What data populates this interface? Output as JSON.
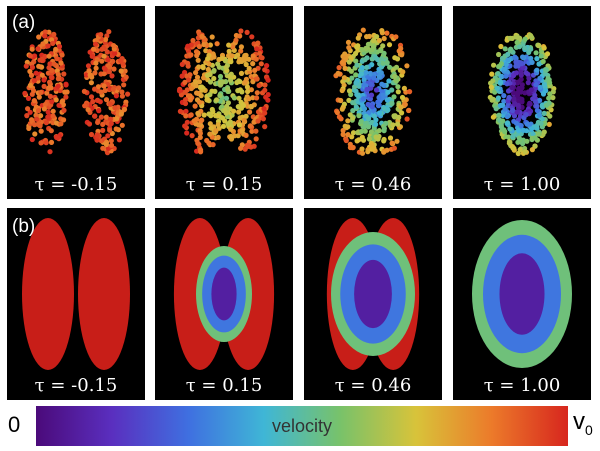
{
  "rows": [
    {
      "label": "(a)",
      "kind": "particles",
      "panels": [
        {
          "tau": "τ = -0.15",
          "stage": 0.0
        },
        {
          "tau": "τ = 0.15",
          "stage": 0.35
        },
        {
          "tau": "τ = 0.46",
          "stage": 0.7
        },
        {
          "tau": "τ = 1.00",
          "stage": 1.0
        }
      ]
    },
    {
      "label": "(b)",
      "kind": "continuum",
      "panels": [
        {
          "tau": "τ = -0.15",
          "stage": 0.0
        },
        {
          "tau": "τ = 0.15",
          "stage": 0.35
        },
        {
          "tau": "τ = 0.46",
          "stage": 0.7
        },
        {
          "tau": "τ = 1.00",
          "stage": 1.0
        }
      ]
    }
  ],
  "colorbar": {
    "min_label": "0",
    "label": "velocity",
    "max_label": "v",
    "max_subscript": "0",
    "stops": [
      "#4b0a7a",
      "#5a2fbf",
      "#3f6fe0",
      "#3fb6d6",
      "#78c26a",
      "#d8c33a",
      "#ec7a2a",
      "#d7261e"
    ]
  },
  "colors": {
    "background": "#000000",
    "low": "#4b0a7a",
    "high": "#d7261e"
  }
}
